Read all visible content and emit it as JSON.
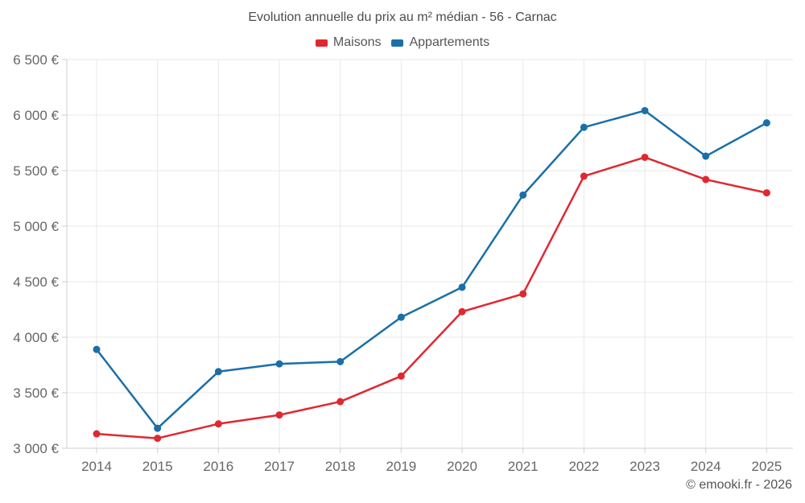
{
  "title": "Evolution annuelle du prix au m² médian - 56 - Carnac",
  "legend": [
    {
      "label": "Maisons",
      "color": "#e02831"
    },
    {
      "label": "Appartements",
      "color": "#1a6fa8"
    }
  ],
  "footer": "© emooki.fr - 2026",
  "colors": {
    "maisons": "#e02831",
    "appartements": "#1a6fa8",
    "grid": "#e8e8e8",
    "axis": "#cfcfcf",
    "tick_text": "#666666",
    "title_text": "#4d4d4d"
  },
  "chart_data": {
    "type": "line",
    "title": "Evolution annuelle du prix au m² médian - 56 - Carnac",
    "x": [
      "2014",
      "2015",
      "2016",
      "2017",
      "2018",
      "2019",
      "2020",
      "2021",
      "2022",
      "2023",
      "2024",
      "2025"
    ],
    "series": [
      {
        "name": "Maisons",
        "color": "#e02831",
        "values": [
          3130,
          3090,
          3220,
          3300,
          3420,
          3650,
          4230,
          4390,
          5450,
          5620,
          5420,
          5300
        ]
      },
      {
        "name": "Appartements",
        "color": "#1a6fa8",
        "values": [
          3890,
          3180,
          3690,
          3760,
          3780,
          4180,
          4450,
          5280,
          5890,
          6040,
          5630,
          5930
        ]
      }
    ],
    "xlabel": "",
    "ylabel": "",
    "ylim": [
      3000,
      6500
    ],
    "ytick_step": 500,
    "ytick_labels": [
      "3 000 €",
      "3 500 €",
      "4 000 €",
      "4 500 €",
      "5 000 €",
      "5 500 €",
      "6 000 €",
      "6 500 €"
    ],
    "grid": true,
    "legend_position": "top"
  }
}
